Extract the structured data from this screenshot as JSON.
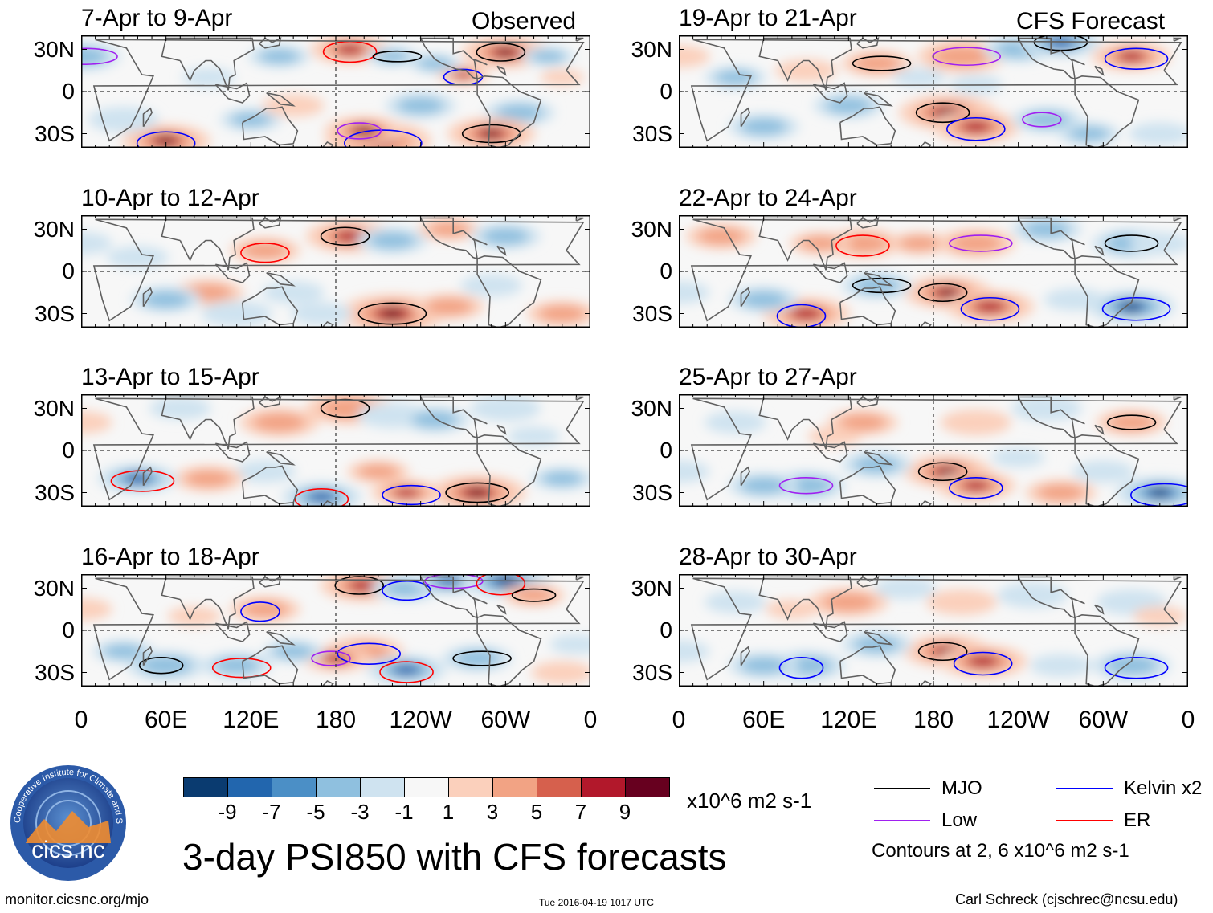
{
  "title": "3-day PSI850 with CFS forecasts",
  "observed_label": "Observed",
  "forecast_label": "CFS Forecast",
  "footer": {
    "url": "monitor.cicsnc.org/mjo",
    "timestamp": "Tue 2016-04-19 1017 UTC",
    "author": "Carl Schreck (cjschrec@ncsu.edu)"
  },
  "logo": {
    "text": "cics.nc",
    "ring_text": "Cooperative Institute for Climate and Satellites"
  },
  "colors": {
    "MJO": "#000000",
    "Low": "#a020f0",
    "Kelvin": "#0000ff",
    "ER": "#ff0000",
    "land_outline": "#606060"
  },
  "chart_data": {
    "type": "heatmap",
    "variable": "PSI850",
    "units": "x10^6 m2 s-1",
    "colorbar": {
      "ticks": [
        "-9",
        "-7",
        "-5",
        "-3",
        "-1",
        "1",
        "3",
        "5",
        "7",
        "9"
      ],
      "colors": [
        "#0a3b70",
        "#2266ae",
        "#4b8fc6",
        "#8fc0df",
        "#cfe3f0",
        "#f7f7f7",
        "#fbd0bc",
        "#f2a384",
        "#d6604d",
        "#b2182b",
        "#67001f"
      ]
    },
    "x_ticks": [
      "0",
      "60E",
      "120E",
      "180",
      "120W",
      "60W",
      "0"
    ],
    "y_ticks": [
      "30N",
      "0",
      "30S"
    ],
    "legend": [
      {
        "label": "MJO",
        "color": "#000000"
      },
      {
        "label": "Kelvin x2",
        "color": "#0000ff"
      },
      {
        "label": "Low",
        "color": "#a020f0"
      },
      {
        "label": "ER",
        "color": "#ff0000"
      }
    ],
    "contour_note": "Contours at 2, 6 x10^6 m2 s-1",
    "panels": [
      {
        "title": "7-Apr to 9-Apr",
        "column": "left",
        "row": 0,
        "source": "Observed",
        "blobs": [
          [
            -60,
            28,
            1.0,
            1.0
          ],
          [
            -90,
            12,
            0.6,
            0.8
          ],
          [
            0,
            25,
            0.9,
            -0.7
          ],
          [
            -50,
            -15,
            0.8,
            -0.5
          ],
          [
            -70,
            -30,
            1.0,
            1.0
          ],
          [
            -150,
            -35,
            1.2,
            1.0
          ],
          [
            -160,
            -28,
            0.9,
            1.0
          ],
          [
            -170,
            30,
            0.9,
            0.8
          ],
          [
            -140,
            25,
            0.6,
            -0.7
          ],
          [
            -110,
            20,
            0.6,
            -0.5
          ],
          [
            -120,
            -10,
            0.8,
            -0.5
          ],
          [
            140,
            25,
            0.7,
            -0.5
          ],
          [
            120,
            -20,
            0.7,
            -0.5
          ],
          [
            60,
            -35,
            1.0,
            1.0
          ],
          [
            30,
            -20,
            0.8,
            -0.4
          ],
          [
            -30,
            25,
            0.6,
            -0.5
          ],
          [
            90,
            10,
            0.6,
            -0.4
          ],
          [
            150,
            -10,
            0.7,
            0.4
          ],
          [
            -20,
            10,
            0.5,
            0.4
          ]
        ]
      },
      {
        "title": "10-Apr to 12-Apr",
        "column": "left",
        "row": 1,
        "source": "Observed",
        "blobs": [
          [
            -170,
            25,
            1.0,
            0.8
          ],
          [
            -140,
            22,
            0.8,
            -0.5
          ],
          [
            -100,
            30,
            0.7,
            0.5
          ],
          [
            -60,
            25,
            0.8,
            -0.5
          ],
          [
            -140,
            -30,
            1.2,
            1.0
          ],
          [
            -100,
            -25,
            0.8,
            0.5
          ],
          [
            -70,
            -10,
            0.7,
            -0.4
          ],
          [
            130,
            15,
            0.8,
            0.6
          ],
          [
            150,
            -15,
            0.7,
            -0.4
          ],
          [
            90,
            -15,
            0.8,
            0.5
          ],
          [
            60,
            -20,
            0.8,
            -0.5
          ],
          [
            40,
            10,
            0.7,
            -0.4
          ],
          [
            0,
            20,
            0.7,
            -0.4
          ],
          [
            -20,
            -30,
            0.8,
            0.5
          ],
          [
            110,
            -30,
            0.8,
            -0.4
          ],
          [
            170,
            -30,
            0.7,
            -0.4
          ]
        ]
      },
      {
        "title": "13-Apr to 15-Apr",
        "column": "left",
        "row": 2,
        "source": "Observed",
        "blobs": [
          [
            -170,
            30,
            1.0,
            0.7
          ],
          [
            -140,
            25,
            0.8,
            -0.4
          ],
          [
            -110,
            22,
            0.8,
            -0.5
          ],
          [
            -60,
            30,
            0.8,
            -0.4
          ],
          [
            -80,
            -30,
            1.1,
            1.0
          ],
          [
            -130,
            -30,
            0.8,
            0.8
          ],
          [
            -150,
            -15,
            0.7,
            0.5
          ],
          [
            170,
            -33,
            0.9,
            -0.9
          ],
          [
            140,
            20,
            0.9,
            0.5
          ],
          [
            130,
            -15,
            0.7,
            -0.4
          ],
          [
            90,
            -20,
            0.8,
            0.5
          ],
          [
            40,
            -20,
            0.9,
            -0.8
          ],
          [
            0,
            20,
            0.7,
            0.4
          ],
          [
            -20,
            -20,
            0.7,
            -0.5
          ],
          [
            70,
            30,
            0.7,
            -0.4
          ],
          [
            -40,
            10,
            0.6,
            -0.3
          ]
        ]
      },
      {
        "title": "16-Apr to 18-Apr",
        "column": "left",
        "row": 3,
        "source": "Observed",
        "blobs": [
          [
            -160,
            32,
            1.0,
            0.8
          ],
          [
            -130,
            30,
            0.8,
            -0.7
          ],
          [
            -100,
            35,
            0.8,
            -0.9
          ],
          [
            -60,
            35,
            1.0,
            -1.0
          ],
          [
            -40,
            25,
            0.7,
            0.7
          ],
          [
            -160,
            -15,
            0.9,
            0.7
          ],
          [
            -180,
            -20,
            0.8,
            0.9
          ],
          [
            -130,
            -28,
            0.9,
            -0.9
          ],
          [
            -80,
            -20,
            0.8,
            -0.6
          ],
          [
            130,
            15,
            0.8,
            0.6
          ],
          [
            150,
            -15,
            0.7,
            -0.5
          ],
          [
            110,
            -25,
            0.8,
            -0.6
          ],
          [
            60,
            -25,
            0.9,
            -0.6
          ],
          [
            30,
            -15,
            0.7,
            -0.5
          ],
          [
            0,
            15,
            0.7,
            0.4
          ],
          [
            -20,
            -30,
            0.7,
            0.4
          ],
          [
            80,
            10,
            0.6,
            0.4
          ],
          [
            -10,
            -10,
            0.6,
            -0.4
          ]
        ]
      },
      {
        "title": "19-Apr to 21-Apr",
        "column": "right",
        "row": 0,
        "source": "CFS Forecast",
        "blobs": [
          [
            -170,
            -15,
            1.1,
            1.0
          ],
          [
            -150,
            -25,
            1.0,
            0.9
          ],
          [
            -160,
            25,
            1.0,
            0.7
          ],
          [
            -120,
            30,
            0.8,
            -0.5
          ],
          [
            -90,
            35,
            0.9,
            -0.9
          ],
          [
            -40,
            25,
            0.9,
            0.8
          ],
          [
            -100,
            -20,
            0.8,
            -0.6
          ],
          [
            -70,
            -30,
            0.7,
            -0.5
          ],
          [
            140,
            20,
            0.8,
            0.6
          ],
          [
            120,
            -10,
            0.8,
            -0.5
          ],
          [
            60,
            -25,
            0.8,
            -0.5
          ],
          [
            40,
            10,
            0.7,
            -0.5
          ],
          [
            0,
            25,
            0.7,
            0.4
          ],
          [
            -20,
            -30,
            0.7,
            -0.4
          ],
          [
            90,
            15,
            0.7,
            0.4
          ],
          [
            170,
            10,
            0.6,
            -0.4
          ],
          [
            -150,
            5,
            0.6,
            -0.3
          ]
        ]
      },
      {
        "title": "22-Apr to 24-Apr",
        "column": "right",
        "row": 1,
        "source": "CFS Forecast",
        "blobs": [
          [
            -170,
            -15,
            1.0,
            1.0
          ],
          [
            -140,
            -25,
            1.0,
            0.9
          ],
          [
            -150,
            20,
            0.9,
            0.6
          ],
          [
            -100,
            30,
            0.8,
            -0.5
          ],
          [
            -40,
            20,
            0.9,
            -0.7
          ],
          [
            -40,
            -25,
            1.0,
            -1.0
          ],
          [
            -80,
            -20,
            0.7,
            -0.4
          ],
          [
            130,
            20,
            0.9,
            0.6
          ],
          [
            140,
            -10,
            0.8,
            -0.6
          ],
          [
            90,
            -30,
            1.0,
            0.9
          ],
          [
            60,
            -20,
            0.8,
            -0.5
          ],
          [
            30,
            25,
            0.8,
            0.5
          ],
          [
            0,
            -15,
            0.7,
            -0.4
          ],
          [
            -20,
            20,
            0.7,
            -0.4
          ],
          [
            100,
            20,
            0.7,
            0.5
          ],
          [
            170,
            20,
            0.7,
            0.5
          ]
        ]
      },
      {
        "title": "25-Apr to 27-Apr",
        "column": "right",
        "row": 2,
        "source": "CFS Forecast",
        "blobs": [
          [
            -170,
            -15,
            1.0,
            1.0
          ],
          [
            -150,
            -25,
            0.9,
            0.8
          ],
          [
            -150,
            20,
            0.8,
            0.4
          ],
          [
            -100,
            30,
            0.8,
            -0.4
          ],
          [
            -40,
            20,
            0.8,
            0.6
          ],
          [
            -20,
            -30,
            1.0,
            -1.0
          ],
          [
            -90,
            -30,
            0.8,
            0.5
          ],
          [
            -60,
            -15,
            0.7,
            -0.4
          ],
          [
            130,
            20,
            0.8,
            0.5
          ],
          [
            140,
            -10,
            0.8,
            -0.5
          ],
          [
            90,
            -25,
            0.9,
            -0.6
          ],
          [
            60,
            -25,
            0.8,
            -0.5
          ],
          [
            40,
            20,
            0.7,
            -0.4
          ],
          [
            0,
            -15,
            0.7,
            -0.4
          ],
          [
            110,
            10,
            0.6,
            0.4
          ],
          [
            -120,
            -5,
            0.6,
            -0.3
          ]
        ]
      },
      {
        "title": "28-Apr to 30-Apr",
        "column": "right",
        "row": 3,
        "source": "CFS Forecast",
        "blobs": [
          [
            -170,
            -15,
            1.0,
            1.0
          ],
          [
            -145,
            -22,
            1.0,
            0.8
          ],
          [
            -160,
            20,
            0.8,
            0.4
          ],
          [
            -110,
            25,
            0.8,
            -0.4
          ],
          [
            -40,
            20,
            0.8,
            -0.4
          ],
          [
            -40,
            -25,
            0.9,
            -0.7
          ],
          [
            -90,
            -25,
            0.7,
            -0.4
          ],
          [
            120,
            20,
            0.9,
            0.5
          ],
          [
            140,
            -10,
            0.8,
            -0.5
          ],
          [
            90,
            -25,
            0.9,
            -0.6
          ],
          [
            60,
            -25,
            0.8,
            -0.5
          ],
          [
            40,
            20,
            0.7,
            -0.4
          ],
          [
            0,
            -15,
            0.7,
            -0.3
          ],
          [
            -20,
            10,
            0.6,
            0.3
          ],
          [
            80,
            15,
            0.6,
            0.3
          ],
          [
            160,
            30,
            0.7,
            -0.4
          ]
        ]
      }
    ]
  }
}
